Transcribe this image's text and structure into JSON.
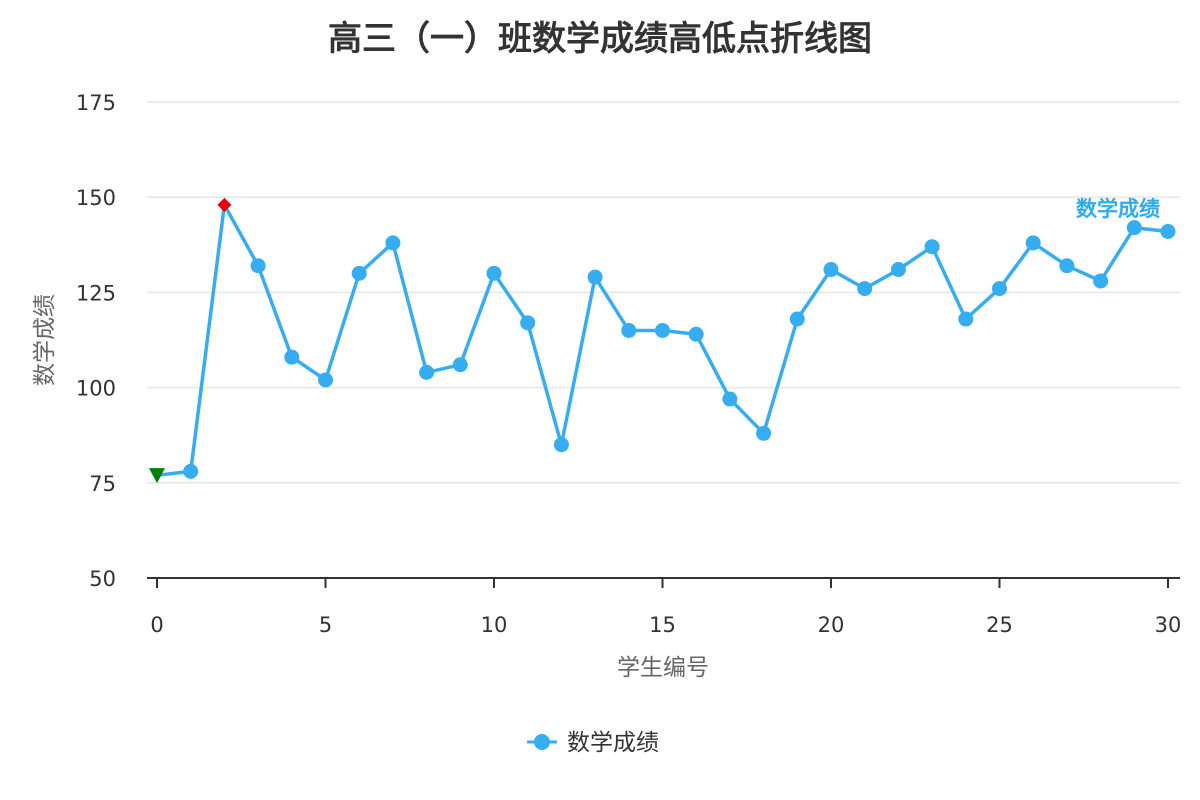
{
  "chart_data": {
    "type": "line",
    "title": "高三（一）班数学成绩高低点折线图",
    "xlabel": "学生编号",
    "ylabel": "数学成绩",
    "xlim": [
      0,
      30
    ],
    "ylim": [
      50,
      175
    ],
    "x_ticks": [
      0,
      5,
      10,
      15,
      20,
      25,
      30
    ],
    "y_ticks": [
      50,
      75,
      100,
      125,
      150,
      175
    ],
    "grid": true,
    "legend": "bottom-center",
    "series": [
      {
        "name": "数学成绩",
        "color": "#36adf0",
        "x": [
          0,
          1,
          2,
          3,
          4,
          5,
          6,
          7,
          8,
          9,
          10,
          11,
          12,
          13,
          14,
          15,
          16,
          17,
          18,
          19,
          20,
          21,
          22,
          23,
          24,
          25,
          26,
          27,
          28,
          29,
          30
        ],
        "values": [
          77,
          78,
          148,
          132,
          108,
          102,
          130,
          138,
          104,
          106,
          130,
          117,
          85,
          129,
          115,
          115,
          114,
          97,
          88,
          118,
          131,
          126,
          131,
          137,
          118,
          126,
          138,
          132,
          128,
          142,
          141
        ]
      }
    ],
    "min_point": {
      "x": 0,
      "y": 77,
      "color": "#008000",
      "marker": "triangle-down"
    },
    "max_point": {
      "x": 2,
      "y": 148,
      "color": "#e8000b",
      "marker": "diamond"
    }
  }
}
